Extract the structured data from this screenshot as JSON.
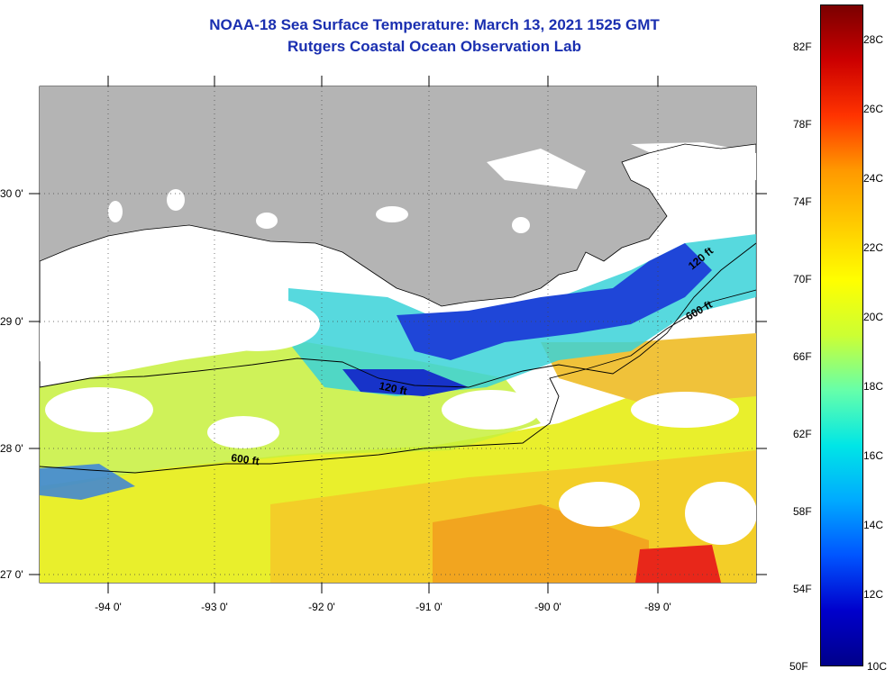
{
  "title": "NOAA-18 Sea Surface Temperature:  March 13, 2021 1525 GMT",
  "subtitle": "Rutgers Coastal Ocean Observation Lab",
  "lat_labels": [
    "30 0'",
    "29 0'",
    "28 0'",
    "27 0'"
  ],
  "lon_labels": [
    "-94 0'",
    "-93 0'",
    "-92 0'",
    "-91 0'",
    "-90 0'",
    "-89 0'"
  ],
  "contour_labels": {
    "c120_west": "120 ft",
    "c120_east": "120 ft",
    "c600_west": "600 ft",
    "c600_east": "600 ft"
  },
  "colorbar": {
    "fahrenheit": [
      "82F",
      "78F",
      "74F",
      "70F",
      "66F",
      "62F",
      "58F",
      "54F",
      "50F"
    ],
    "celsius": [
      "28C",
      "26C",
      "24C",
      "22C",
      "20C",
      "18C",
      "16C",
      "14C",
      "12C",
      "10C"
    ],
    "colors": [
      "#7a0000",
      "#cc0000",
      "#ff3300",
      "#ff9900",
      "#ffcc00",
      "#ffff00",
      "#ccff33",
      "#66ffaa",
      "#00e6e6",
      "#00aaff",
      "#0055ff",
      "#0000cc",
      "#00008a"
    ]
  },
  "colors": {
    "land": "#b4b4b4",
    "title": "#1a2fb0"
  }
}
